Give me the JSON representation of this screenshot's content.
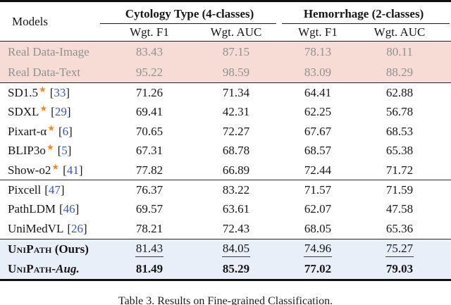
{
  "table": {
    "header": {
      "models": "Models",
      "groups": [
        {
          "label": "Cytology Type (4-classes)",
          "cols": [
            "Wgt. F1",
            "Wgt. AUC"
          ]
        },
        {
          "label": "Hemorrhage (2-classes)",
          "cols": [
            "Wgt. F1",
            "Wgt. AUC"
          ]
        }
      ]
    },
    "cite_open": "[",
    "cite_close": "]",
    "sections": [
      {
        "bg": "pink",
        "rows": [
          {
            "name": "Real Data-Image",
            "muted": true,
            "values": [
              "83.43",
              "87.15",
              "78.13",
              "80.11"
            ]
          },
          {
            "name": "Real Data-Text",
            "muted": true,
            "values": [
              "95.22",
              "98.59",
              "83.09",
              "88.29"
            ]
          }
        ]
      },
      {
        "bg": "none",
        "rows": [
          {
            "name": "SD1.5",
            "star": true,
            "cite": "33",
            "values": [
              "71.26",
              "71.34",
              "64.41",
              "62.88"
            ]
          },
          {
            "name": "SDXL",
            "star": true,
            "cite": "29",
            "values": [
              "69.41",
              "42.31",
              "62.25",
              "56.78"
            ]
          },
          {
            "name": "Pixart-α",
            "star": true,
            "cite": "6",
            "values": [
              "70.65",
              "72.27",
              "67.67",
              "68.53"
            ]
          },
          {
            "name": "BLIP3o",
            "star": true,
            "cite": "5",
            "values": [
              "67.31",
              "68.78",
              "68.57",
              "65.38"
            ]
          },
          {
            "name": "Show-o2",
            "star": true,
            "cite": "41",
            "values": [
              "77.82",
              "66.89",
              "72.44",
              "71.72"
            ]
          }
        ]
      },
      {
        "bg": "none",
        "rows": [
          {
            "name": "Pixcell",
            "cite": "47",
            "values": [
              "76.37",
              "83.22",
              "71.57",
              "71.59"
            ]
          },
          {
            "name": "PathLDM",
            "cite": "46",
            "values": [
              "69.57",
              "63.61",
              "62.07",
              "47.58"
            ]
          },
          {
            "name": "UniMedVL",
            "cite": "26",
            "values": [
              "78.21",
              "72.43",
              "68.05",
              "65.36"
            ]
          }
        ]
      },
      {
        "bg": "blue",
        "rows": [
          {
            "name": "UniPath",
            "suffix": " (Ours)",
            "smallcaps": true,
            "val_style": "underline",
            "values": [
              "81.43",
              "84.05",
              "74.96",
              "75.27"
            ]
          },
          {
            "name": "UniPath",
            "suffix": "-Aug.",
            "suffix_italic": true,
            "smallcaps": true,
            "val_style": "bold",
            "values": [
              "81.49",
              "85.29",
              "77.02",
              "79.03"
            ]
          }
        ]
      }
    ]
  },
  "caption": {
    "label": "Table 3.",
    "text": " Results on Fine-grained Classification."
  },
  "icons": {
    "star": "★"
  },
  "colors": {
    "real_data_row_bg": "#f7dcd6",
    "ours_row_bg": "#e9eff8",
    "star_icon": "#f6861f",
    "citation_number": "#3a57b8",
    "muted_text": "#8f9193"
  }
}
